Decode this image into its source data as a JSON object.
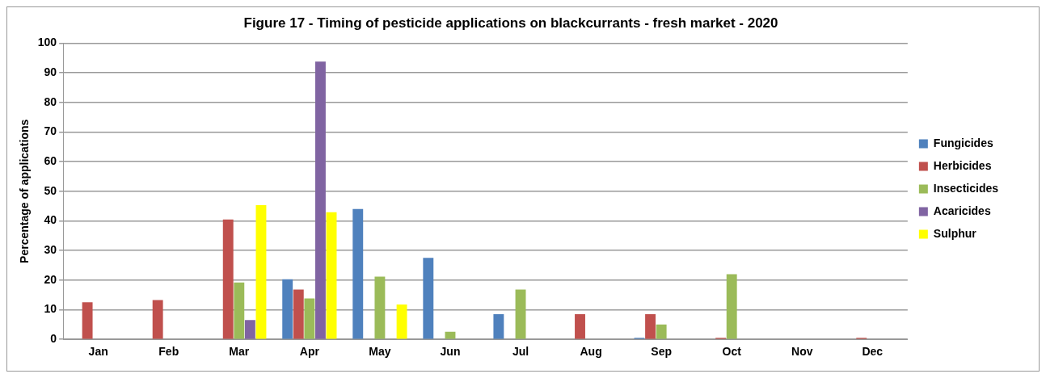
{
  "chart_data": {
    "type": "bar",
    "title": "Figure 17 - Timing of pesticide applications on blackcurrants - fresh market - 2020",
    "ylabel": "Percentage of applications",
    "categories": [
      "Jan",
      "Feb",
      "Mar",
      "Apr",
      "May",
      "Jun",
      "Jul",
      "Aug",
      "Sep",
      "Oct",
      "Nov",
      "Dec"
    ],
    "series": [
      {
        "name": "Fungicides",
        "color": "#4f81bd",
        "values": [
          0,
          0,
          0,
          20.3,
          44,
          27.5,
          8.5,
          0,
          0.5,
          0,
          0,
          0
        ]
      },
      {
        "name": "Herbicides",
        "color": "#c0504d",
        "values": [
          12.5,
          13.3,
          40.5,
          16.8,
          0,
          0,
          0,
          8.5,
          8.5,
          0.5,
          0,
          0.5
        ]
      },
      {
        "name": "Insecticides",
        "color": "#9bbb59",
        "values": [
          0,
          0,
          19.2,
          13.8,
          21.2,
          2.6,
          16.8,
          0,
          5,
          22,
          0,
          0
        ]
      },
      {
        "name": "Acaricides",
        "color": "#8064a2",
        "values": [
          0,
          0,
          6.5,
          93.8,
          0,
          0,
          0,
          0,
          0,
          0,
          0,
          0
        ]
      },
      {
        "name": "Sulphur",
        "color": "#ffff00",
        "values": [
          0,
          0,
          45.3,
          42.9,
          11.8,
          0,
          0,
          0,
          0,
          0,
          0,
          0
        ]
      }
    ],
    "ylim": [
      0,
      100
    ],
    "yticks": [
      0,
      10,
      20,
      30,
      40,
      50,
      60,
      70,
      80,
      90,
      100
    ],
    "grid": "y",
    "legend": "right"
  }
}
